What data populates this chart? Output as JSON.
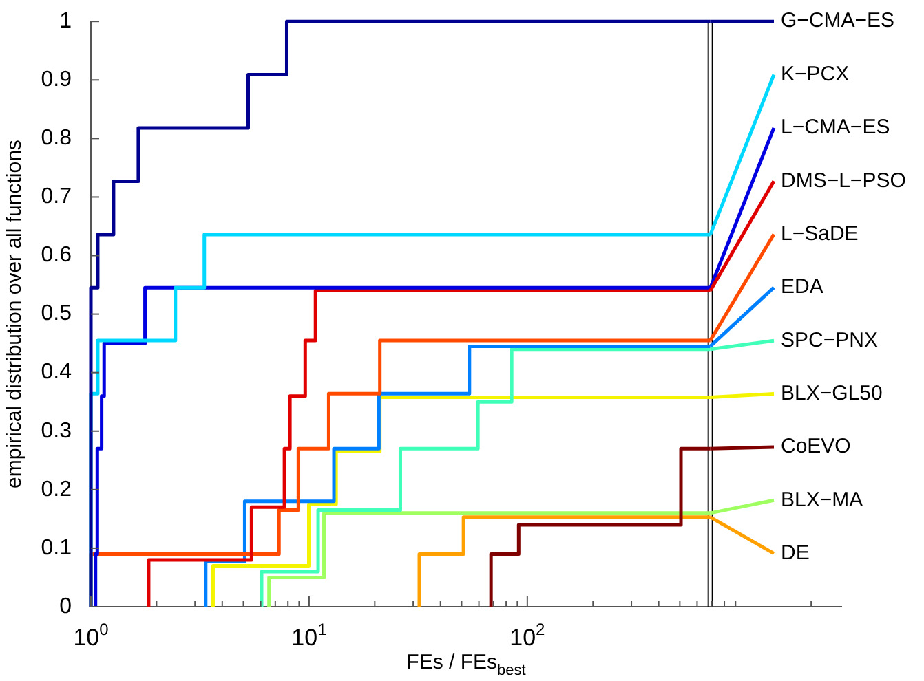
{
  "chart_data": {
    "type": "step",
    "xlabel": "FEs / FEs$_{best}$",
    "ylabel": "empirical distribution over all functions",
    "log": "x",
    "legend": "right",
    "xlim": [
      1,
      2750
    ],
    "xticks": [
      {
        "value": 1,
        "label": "10$^{0}$"
      },
      {
        "value": 2,
        "label": null
      },
      {
        "value": 3,
        "label": null
      },
      {
        "value": 4,
        "label": null
      },
      {
        "value": 5,
        "label": null
      },
      {
        "value": 6,
        "label": null
      },
      {
        "value": 7,
        "label": null
      },
      {
        "value": 8,
        "label": null
      },
      {
        "value": 9,
        "label": null
      },
      {
        "value": 10,
        "label": "10$^{1}$"
      },
      {
        "value": 20,
        "label": null
      },
      {
        "value": 30,
        "label": null
      },
      {
        "value": 40,
        "label": null
      },
      {
        "value": 50,
        "label": null
      },
      {
        "value": 60,
        "label": null
      },
      {
        "value": 70,
        "label": null
      },
      {
        "value": 80,
        "label": null
      },
      {
        "value": 90,
        "label": null
      },
      {
        "value": 100,
        "label": "10$^{2}$"
      },
      {
        "value": 200,
        "label": null
      },
      {
        "value": 300,
        "label": null
      },
      {
        "value": 400,
        "label": null
      },
      {
        "value": 500,
        "label": null
      },
      {
        "value": 600,
        "label": null
      },
      {
        "value": 700,
        "label": null
      },
      {
        "value": 800,
        "label": null
      },
      {
        "value": 900,
        "label": null
      },
      {
        "value": 2000,
        "label": null
      }
    ],
    "ylim": [
      0,
      1
    ],
    "yticks": [
      0,
      0.1,
      0.2,
      0.3,
      0.4,
      0.5,
      0.6,
      0.7,
      0.8,
      0.9,
      1
    ],
    "ref_lines": [
      {
        "axis": "x",
        "value": 690,
        "color": "#000000"
      }
    ],
    "series": [
      {
        "name": "G−CMA−ES",
        "color": "#000090",
        "x": [
          1,
          1,
          1.075,
          1.27,
          1.65,
          5.26,
          7.9,
          690
        ],
        "values": [
          0,
          0.545,
          0.636,
          0.727,
          0.818,
          0.909,
          1,
          1
        ]
      },
      {
        "name": "K−PCX",
        "color": "#00d8ff",
        "x": [
          1,
          1,
          1.075,
          2.44,
          3.31,
          690
        ],
        "values": [
          0,
          0.364,
          0.455,
          0.545,
          0.636,
          0.636
        ]
      },
      {
        "name": "L−CMA−ES",
        "color": "#0000e0",
        "x": [
          1.05,
          1.05,
          1.07,
          1.12,
          1.15,
          1.77,
          690
        ],
        "values": [
          0,
          0.09,
          0.27,
          0.36,
          0.45,
          0.545,
          0.545
        ]
      },
      {
        "name": "DMS−L−PSO",
        "color": "#e00000",
        "x": [
          1.84,
          1.84,
          5.45,
          7.71,
          8.17,
          9.6,
          10.7,
          690
        ],
        "values": [
          0,
          0.08,
          0.17,
          0.27,
          0.36,
          0.455,
          0.54,
          0.54
        ]
      },
      {
        "name": "L−SaDE",
        "color": "#ff4a00",
        "x": [
          1,
          1,
          7.28,
          8.93,
          12.3,
          21.1,
          690
        ],
        "values": [
          0,
          0.09,
          0.165,
          0.27,
          0.364,
          0.455,
          0.455
        ]
      },
      {
        "name": "EDA",
        "color": "#0080ff",
        "x": [
          3.36,
          3.36,
          5.07,
          13,
          20.9,
          54.3,
          690
        ],
        "values": [
          0,
          0.077,
          0.18,
          0.27,
          0.364,
          0.445,
          0.445
        ]
      },
      {
        "name": "SPC−PNX",
        "color": "#40ffb8",
        "x": [
          6.06,
          6.06,
          11,
          26.2,
          59.4,
          84.8,
          690
        ],
        "values": [
          0,
          0.06,
          0.165,
          0.27,
          0.35,
          0.44,
          0.44
        ]
      },
      {
        "name": "BLX−GL50",
        "color": "#f4f400",
        "x": [
          3.63,
          3.63,
          9.97,
          13.3,
          21.1,
          690
        ],
        "values": [
          0,
          0.07,
          0.175,
          0.265,
          0.358,
          0.358
        ]
      },
      {
        "name": "CoEVO",
        "color": "#800000",
        "x": [
          68.2,
          68.2,
          91.3,
          506,
          690
        ],
        "values": [
          0,
          0.09,
          0.14,
          0.27,
          0.27
        ]
      },
      {
        "name": "BLX−MA",
        "color": "#a0ff60",
        "x": [
          6.55,
          6.55,
          11.7,
          690
        ],
        "values": [
          0,
          0.05,
          0.16,
          0.16
        ]
      },
      {
        "name": "DE",
        "color": "#ffa000",
        "x": [
          32,
          32,
          51,
          690
        ],
        "values": [
          0,
          0.09,
          0.153,
          0.153
        ]
      }
    ]
  }
}
